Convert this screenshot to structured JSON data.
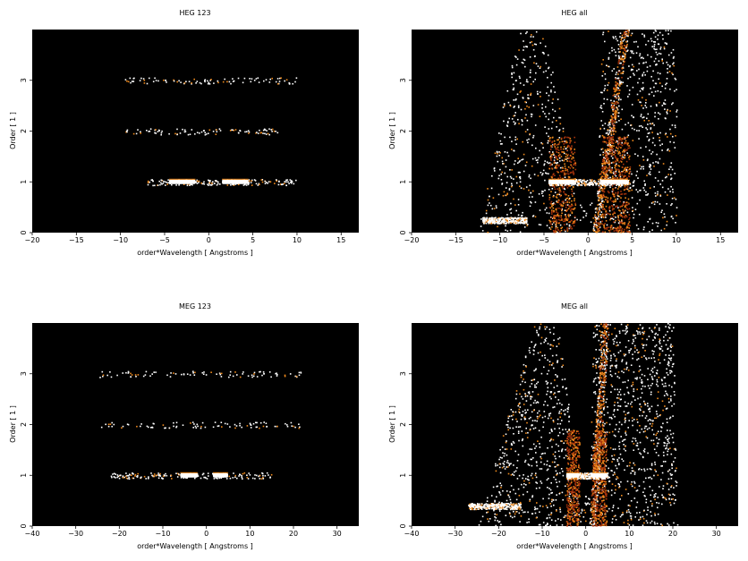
{
  "colors": {
    "background": "#000000",
    "low": "#a8340c",
    "mid": "#f08a1c",
    "high": "#ffffff"
  },
  "chart_data": [
    {
      "type": "heatmap",
      "title": "HEG 123",
      "xlabel": "order*Wavelength [ Angstroms ]",
      "ylabel": "Order [ 1 ]",
      "xlim": [
        -20,
        17
      ],
      "ylim": [
        0,
        4
      ],
      "xticks": [
        -20,
        -15,
        -10,
        -5,
        0,
        5,
        10,
        15
      ],
      "yticks": [
        0,
        1,
        2,
        3
      ],
      "colormap": "black-red-yellow-white",
      "bands": [
        {
          "order": 1,
          "x": [
            -7,
            10
          ],
          "density": "low",
          "bright": [
            [
              -4.5,
              -1.5
            ],
            [
              1.5,
              4.5
            ]
          ]
        },
        {
          "order": 2,
          "x": [
            -9.5,
            8
          ],
          "density": "sparse"
        },
        {
          "order": 3,
          "x": [
            -9.5,
            10
          ],
          "density": "sparse"
        }
      ]
    },
    {
      "type": "heatmap",
      "title": "HEG all",
      "xlabel": "order*Wavelength [ Angstroms ]",
      "ylabel": "Order [ 1 ]",
      "xlim": [
        -20,
        17
      ],
      "ylim": [
        0,
        4
      ],
      "xticks": [
        -20,
        -15,
        -10,
        -5,
        0,
        5,
        10,
        15
      ],
      "yticks": [
        0,
        1,
        2,
        3
      ],
      "colormap": "black-red-yellow-white",
      "bands": [
        {
          "order": 1,
          "x": [
            -4.5,
            4.5
          ],
          "density": "high",
          "bright": [
            [
              -4.5,
              -1.5
            ],
            [
              1.5,
              4.5
            ]
          ]
        },
        {
          "order": 0.25,
          "x": [
            -12,
            -7
          ],
          "density": "high"
        }
      ],
      "background_region": {
        "left_edge_x": [
          -12.5,
          -8
        ],
        "right_edge_x": [
          10,
          10
        ],
        "diagonal_streak_x": [
          [
            0.8,
            0
          ],
          [
            4.2,
            4
          ]
        ]
      }
    },
    {
      "type": "heatmap",
      "title": "MEG 123",
      "xlabel": "order*Wavelength [ Angstroms ]",
      "ylabel": "Order [ 1 ]",
      "xlim": [
        -40,
        35
      ],
      "ylim": [
        0,
        4
      ],
      "xticks": [
        -40,
        -30,
        -20,
        -10,
        0,
        10,
        20,
        30
      ],
      "yticks": [
        0,
        1,
        2,
        3
      ],
      "colormap": "black-red-yellow-white",
      "bands": [
        {
          "order": 1,
          "x": [
            -22,
            15
          ],
          "density": "low",
          "bright": [
            [
              -6,
              -2
            ],
            [
              1.5,
              5
            ]
          ]
        },
        {
          "order": 2,
          "x": [
            -25,
            22
          ],
          "density": "sparse"
        },
        {
          "order": 3,
          "x": [
            -25,
            22
          ],
          "density": "sparse"
        }
      ]
    },
    {
      "type": "heatmap",
      "title": "MEG all",
      "xlabel": "order*Wavelength [ Angstroms ]",
      "ylabel": "Order [ 1 ]",
      "xlim": [
        -40,
        35
      ],
      "ylim": [
        0,
        4
      ],
      "xticks": [
        -40,
        -30,
        -20,
        -10,
        0,
        10,
        20,
        30
      ],
      "yticks": [
        0,
        1,
        2,
        3
      ],
      "colormap": "black-red-yellow-white",
      "bands": [
        {
          "order": 1,
          "x": [
            -4.5,
            5
          ],
          "density": "high",
          "bright": [
            [
              -4.5,
              -1.5
            ],
            [
              1.5,
              5
            ]
          ]
        },
        {
          "order": 0.4,
          "x": [
            -27,
            -15
          ],
          "density": "high"
        }
      ],
      "background_region": {
        "left_edge_x": [
          -25,
          -12
        ],
        "right_edge_x": [
          21,
          20
        ],
        "diagonal_streak_x": [
          [
            1.5,
            0
          ],
          [
            4.5,
            4
          ]
        ]
      }
    }
  ]
}
